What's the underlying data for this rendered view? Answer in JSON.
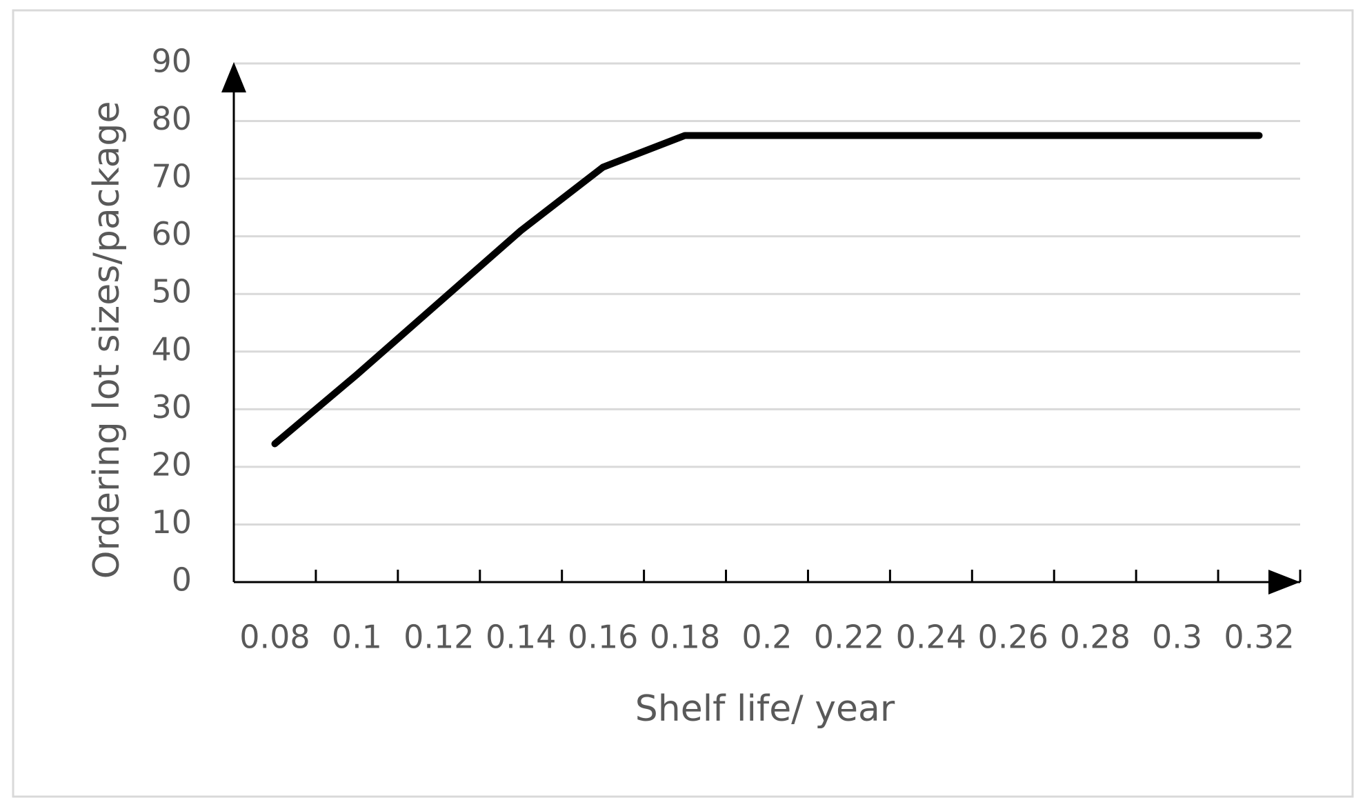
{
  "chart_data": {
    "type": "line",
    "x_label": "Shelf life/ year",
    "y_label": "Ordering lot sizes/package",
    "categories": [
      "0.08",
      "0.1",
      "0.12",
      "0.14",
      "0.16",
      "0.18",
      "0.2",
      "0.22",
      "0.24",
      "0.26",
      "0.28",
      "0.3",
      "0.32"
    ],
    "values": [
      24,
      36,
      48.5,
      61,
      72,
      77.5,
      77.5,
      77.5,
      77.5,
      77.5,
      77.5,
      77.5,
      77.5
    ],
    "color": "#000000",
    "ylim": [
      0,
      90
    ],
    "yticks": [
      0,
      10,
      20,
      30,
      40,
      50,
      60,
      70,
      80,
      90
    ],
    "grid": true
  }
}
